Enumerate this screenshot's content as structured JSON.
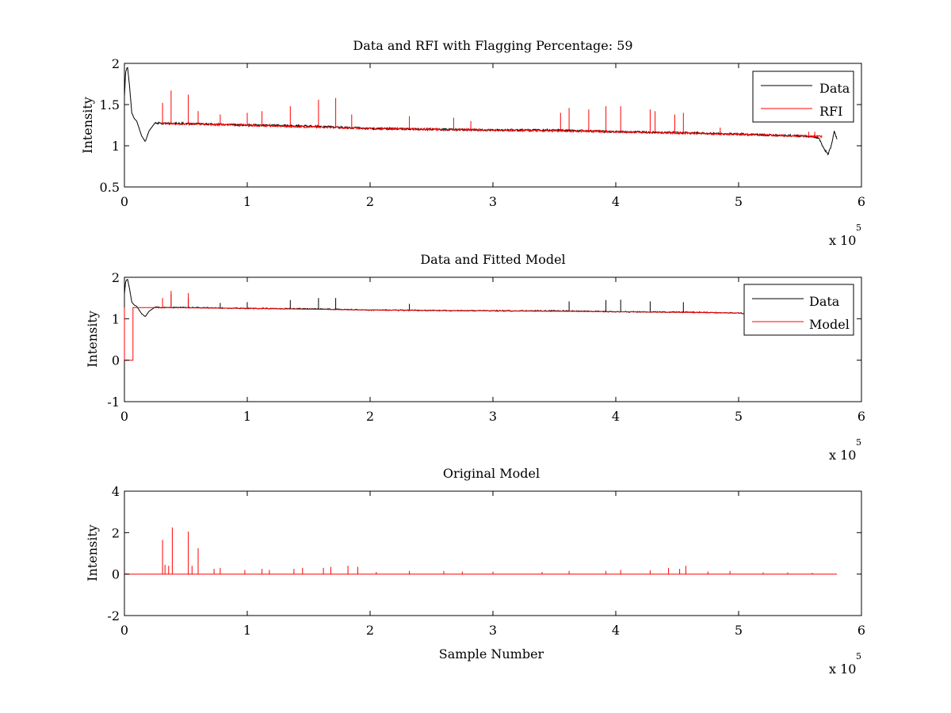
{
  "chart_data": [
    {
      "id": "top",
      "type": "line",
      "title": "Data and RFI with Flagging Percentage: 59",
      "xlabel": "",
      "ylabel": "Intensity",
      "xlim": [
        0,
        600000
      ],
      "ylim": [
        0.5,
        2
      ],
      "xticks": [
        0,
        100000,
        200000,
        300000,
        400000,
        500000,
        600000
      ],
      "xtick_labels": [
        "0",
        "1",
        "2",
        "3",
        "4",
        "5",
        "6"
      ],
      "yticks": [
        0.5,
        1,
        1.5,
        2
      ],
      "ytick_labels": [
        "0.5",
        "1",
        "1.5",
        "2"
      ],
      "x_exponent_base": "x 10",
      "x_exponent_power": "5",
      "legend_position": "top-right",
      "series": [
        {
          "name": "Data",
          "color": "#000000",
          "x": [
            0,
            1000,
            2500,
            4000,
            6000,
            8000,
            10000,
            14000,
            17000,
            20000,
            25000,
            30000,
            50000,
            100000,
            150000,
            200000,
            250000,
            300000,
            350000,
            400000,
            450000,
            500000,
            550000,
            560000,
            565000,
            570000,
            573000,
            575000,
            578000,
            580000
          ],
          "y": [
            1.6,
            1.9,
            1.96,
            1.75,
            1.4,
            1.33,
            1.3,
            1.12,
            1.05,
            1.18,
            1.28,
            1.27,
            1.27,
            1.25,
            1.24,
            1.21,
            1.2,
            1.19,
            1.19,
            1.17,
            1.16,
            1.14,
            1.12,
            1.11,
            1.1,
            0.95,
            0.9,
            0.98,
            1.18,
            1.08
          ]
        },
        {
          "name": "RFI",
          "color": "#ff0000",
          "x": [
            30000,
            100000,
            200000,
            300000,
            400000,
            500000,
            550000,
            568000
          ],
          "y": [
            1.27,
            1.25,
            1.21,
            1.19,
            1.17,
            1.14,
            1.12,
            1.11
          ],
          "spikes": [
            {
              "x": 31000,
              "y": 1.52
            },
            {
              "x": 38000,
              "y": 1.67
            },
            {
              "x": 52000,
              "y": 1.62
            },
            {
              "x": 60000,
              "y": 1.42
            },
            {
              "x": 78000,
              "y": 1.38
            },
            {
              "x": 100000,
              "y": 1.4
            },
            {
              "x": 112000,
              "y": 1.42
            },
            {
              "x": 135000,
              "y": 1.48
            },
            {
              "x": 158000,
              "y": 1.56
            },
            {
              "x": 172000,
              "y": 1.58
            },
            {
              "x": 185000,
              "y": 1.38
            },
            {
              "x": 232000,
              "y": 1.36
            },
            {
              "x": 268000,
              "y": 1.34
            },
            {
              "x": 282000,
              "y": 1.3
            },
            {
              "x": 355000,
              "y": 1.4
            },
            {
              "x": 362000,
              "y": 1.46
            },
            {
              "x": 378000,
              "y": 1.44
            },
            {
              "x": 392000,
              "y": 1.48
            },
            {
              "x": 404000,
              "y": 1.48
            },
            {
              "x": 428000,
              "y": 1.44
            },
            {
              "x": 432000,
              "y": 1.42
            },
            {
              "x": 448000,
              "y": 1.38
            },
            {
              "x": 455000,
              "y": 1.4
            },
            {
              "x": 485000,
              "y": 1.22
            },
            {
              "x": 557000,
              "y": 1.17
            },
            {
              "x": 562000,
              "y": 1.17
            }
          ]
        }
      ]
    },
    {
      "id": "middle",
      "type": "line",
      "title": "Data and Fitted Model",
      "xlabel": "",
      "ylabel": "Intensity",
      "xlim": [
        0,
        600000
      ],
      "ylim": [
        -1,
        2
      ],
      "xticks": [
        0,
        100000,
        200000,
        300000,
        400000,
        500000,
        600000
      ],
      "xtick_labels": [
        "0",
        "1",
        "2",
        "3",
        "4",
        "5",
        "6"
      ],
      "yticks": [
        -1,
        0,
        1,
        2
      ],
      "ytick_labels": [
        "-1",
        "0",
        "1",
        "2"
      ],
      "x_exponent_base": "x 10",
      "x_exponent_power": "5",
      "legend_position": "top-right",
      "series": [
        {
          "name": "Data",
          "color": "#000000",
          "x": [
            0,
            1000,
            2500,
            4000,
            6000,
            8000,
            10000,
            14000,
            17000,
            20000,
            25000,
            30000,
            50000,
            100000,
            150000,
            200000,
            250000,
            300000,
            350000,
            400000,
            450000,
            500000,
            505000
          ],
          "y": [
            1.6,
            1.9,
            1.96,
            1.75,
            1.4,
            1.33,
            1.3,
            1.12,
            1.05,
            1.18,
            1.28,
            1.27,
            1.27,
            1.25,
            1.24,
            1.21,
            1.2,
            1.19,
            1.19,
            1.17,
            1.16,
            1.14,
            1.12
          ],
          "spikes": [
            {
              "x": 38000,
              "y": 1.6
            },
            {
              "x": 52000,
              "y": 1.5
            },
            {
              "x": 78000,
              "y": 1.38
            },
            {
              "x": 100000,
              "y": 1.4
            },
            {
              "x": 135000,
              "y": 1.45
            },
            {
              "x": 158000,
              "y": 1.5
            },
            {
              "x": 172000,
              "y": 1.5
            },
            {
              "x": 232000,
              "y": 1.36
            },
            {
              "x": 362000,
              "y": 1.42
            },
            {
              "x": 392000,
              "y": 1.45
            },
            {
              "x": 404000,
              "y": 1.46
            },
            {
              "x": 428000,
              "y": 1.42
            },
            {
              "x": 455000,
              "y": 1.4
            }
          ]
        },
        {
          "name": "Model",
          "color": "#ff0000",
          "x": [
            0,
            0,
            7000,
            7000,
            30000,
            100000,
            200000,
            300000,
            400000,
            500000,
            505000
          ],
          "y": [
            0,
            0,
            0,
            1.27,
            1.27,
            1.25,
            1.21,
            1.19,
            1.17,
            1.14,
            1.12
          ],
          "spikes": [
            {
              "x": 31000,
              "y": 1.5
            },
            {
              "x": 38000,
              "y": 1.67
            },
            {
              "x": 52000,
              "y": 1.62
            }
          ]
        }
      ]
    },
    {
      "id": "bottom",
      "type": "line",
      "title": "Original Model",
      "xlabel": "Sample Number",
      "ylabel": "Intensity",
      "xlim": [
        0,
        600000
      ],
      "ylim": [
        -2,
        4
      ],
      "xticks": [
        0,
        100000,
        200000,
        300000,
        400000,
        500000,
        600000
      ],
      "xtick_labels": [
        "0",
        "1",
        "2",
        "3",
        "4",
        "5",
        "6"
      ],
      "yticks": [
        -2,
        0,
        2,
        4
      ],
      "ytick_labels": [
        "-2",
        "0",
        "2",
        "4"
      ],
      "x_exponent_base": "x 10",
      "x_exponent_power": "5",
      "series": [
        {
          "name": "",
          "color": "#ff0000",
          "x": [
            0,
            580000
          ],
          "y": [
            0,
            0
          ],
          "spikes": [
            {
              "x": 31000,
              "y": 1.65
            },
            {
              "x": 33000,
              "y": 0.45
            },
            {
              "x": 36000,
              "y": 0.4
            },
            {
              "x": 39000,
              "y": 2.25
            },
            {
              "x": 52000,
              "y": 2.05
            },
            {
              "x": 55000,
              "y": 0.4
            },
            {
              "x": 60000,
              "y": 1.25
            },
            {
              "x": 73000,
              "y": 0.25
            },
            {
              "x": 78000,
              "y": 0.3
            },
            {
              "x": 98000,
              "y": 0.2
            },
            {
              "x": 112000,
              "y": 0.25
            },
            {
              "x": 118000,
              "y": 0.2
            },
            {
              "x": 138000,
              "y": 0.25
            },
            {
              "x": 145000,
              "y": 0.3
            },
            {
              "x": 162000,
              "y": 0.3
            },
            {
              "x": 168000,
              "y": 0.35
            },
            {
              "x": 182000,
              "y": 0.4
            },
            {
              "x": 190000,
              "y": 0.35
            },
            {
              "x": 205000,
              "y": 0.1
            },
            {
              "x": 232000,
              "y": 0.15
            },
            {
              "x": 260000,
              "y": 0.15
            },
            {
              "x": 275000,
              "y": 0.12
            },
            {
              "x": 300000,
              "y": 0.12
            },
            {
              "x": 340000,
              "y": 0.1
            },
            {
              "x": 362000,
              "y": 0.15
            },
            {
              "x": 392000,
              "y": 0.15
            },
            {
              "x": 404000,
              "y": 0.2
            },
            {
              "x": 428000,
              "y": 0.18
            },
            {
              "x": 443000,
              "y": 0.3
            },
            {
              "x": 452000,
              "y": 0.25
            },
            {
              "x": 457000,
              "y": 0.4
            },
            {
              "x": 475000,
              "y": 0.12
            },
            {
              "x": 493000,
              "y": 0.15
            },
            {
              "x": 520000,
              "y": 0.08
            },
            {
              "x": 540000,
              "y": 0.08
            },
            {
              "x": 560000,
              "y": 0.06
            }
          ]
        }
      ]
    }
  ]
}
